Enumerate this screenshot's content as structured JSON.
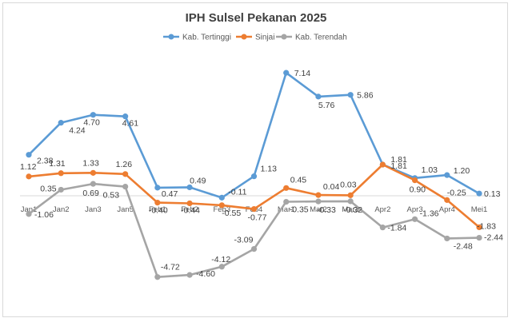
{
  "chart_data": {
    "type": "line",
    "title": "IPH Sulsel Pekanan 2025",
    "categories": [
      "Jan1",
      "Jan2",
      "Jan3",
      "Jan5",
      "Feb1",
      "Feb2",
      "Feb3",
      "Feb4",
      "Mar1",
      "Mar2",
      "Mar3",
      "Apr2",
      "Apr3",
      "Apr4",
      "Mei1"
    ],
    "series": [
      {
        "name": "Kab. Tertinggi",
        "color": "#5b9bd5",
        "values": [
          2.38,
          4.24,
          4.7,
          4.61,
          0.47,
          0.49,
          -0.11,
          1.13,
          7.14,
          5.76,
          5.86,
          1.81,
          1.03,
          1.2,
          0.13
        ],
        "labels": [
          "2.38",
          "4.24",
          "4.70",
          "4.61",
          "0.47",
          "0.49",
          "-0.11",
          "1.13",
          "7.14",
          "5.76",
          "5.86",
          "1.81",
          "1.03",
          "1.20",
          "0.13"
        ]
      },
      {
        "name": "Sinjai",
        "color": "#ed7d31",
        "values": [
          1.12,
          1.31,
          1.33,
          1.26,
          -0.4,
          -0.44,
          -0.55,
          -0.77,
          0.45,
          0.04,
          0.03,
          1.81,
          0.9,
          -0.25,
          -1.83
        ],
        "labels": [
          "1.12",
          "1.31",
          "1.33",
          "1.26",
          "-0.40",
          "-0.44",
          "-0.55",
          "-0.77",
          "0.45",
          "0.04",
          "0.03",
          "1.81",
          "0.90",
          "-0.25",
          "-1.83"
        ]
      },
      {
        "name": "Kab. Terendah",
        "color": "#a5a5a5",
        "values": [
          -1.06,
          0.35,
          0.69,
          0.53,
          -4.72,
          -4.6,
          -4.12,
          -3.09,
          -0.35,
          -0.33,
          -0.32,
          -1.84,
          -1.36,
          -2.48,
          -2.44
        ],
        "labels": [
          "-1.06",
          "0.35",
          "0.69",
          "0.53",
          "-4.72",
          "-4.60",
          "-4.12",
          "-3.09",
          "-0.35",
          "-0.33",
          "-0.32",
          "-1.84",
          "-1.36",
          "-2.48",
          "-2.44"
        ]
      }
    ],
    "ylim": [
      -5.5,
      8
    ],
    "legend_position": "top",
    "grid": false,
    "category_axis_at": 0
  }
}
